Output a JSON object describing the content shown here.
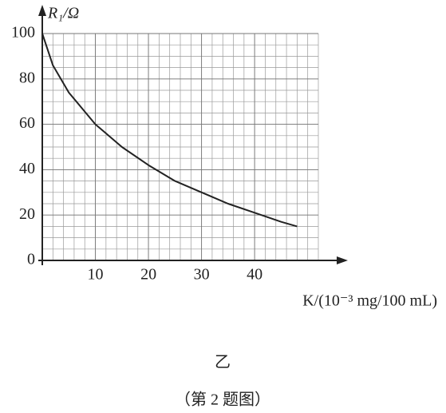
{
  "chart_data": {
    "type": "line",
    "x_label": "K/(10⁻³ mg/100 mL)",
    "y_label": "R₁/Ω",
    "caption": "乙",
    "figure_note": "（第 2 题图）",
    "x": [
      0,
      2,
      5,
      10,
      15,
      20,
      25,
      30,
      35,
      40,
      45,
      48
    ],
    "series": [
      {
        "name": "R1",
        "color": "#222222",
        "values": [
          100,
          86,
          74,
          60,
          50,
          42,
          35,
          30,
          25,
          21,
          17,
          15
        ]
      }
    ],
    "xlim": [
      0,
      52
    ],
    "ylim": [
      0,
      100
    ],
    "xticks": [
      10,
      20,
      30,
      40
    ],
    "yticks": [
      0,
      20,
      40,
      60,
      80,
      100
    ],
    "grid": true
  }
}
